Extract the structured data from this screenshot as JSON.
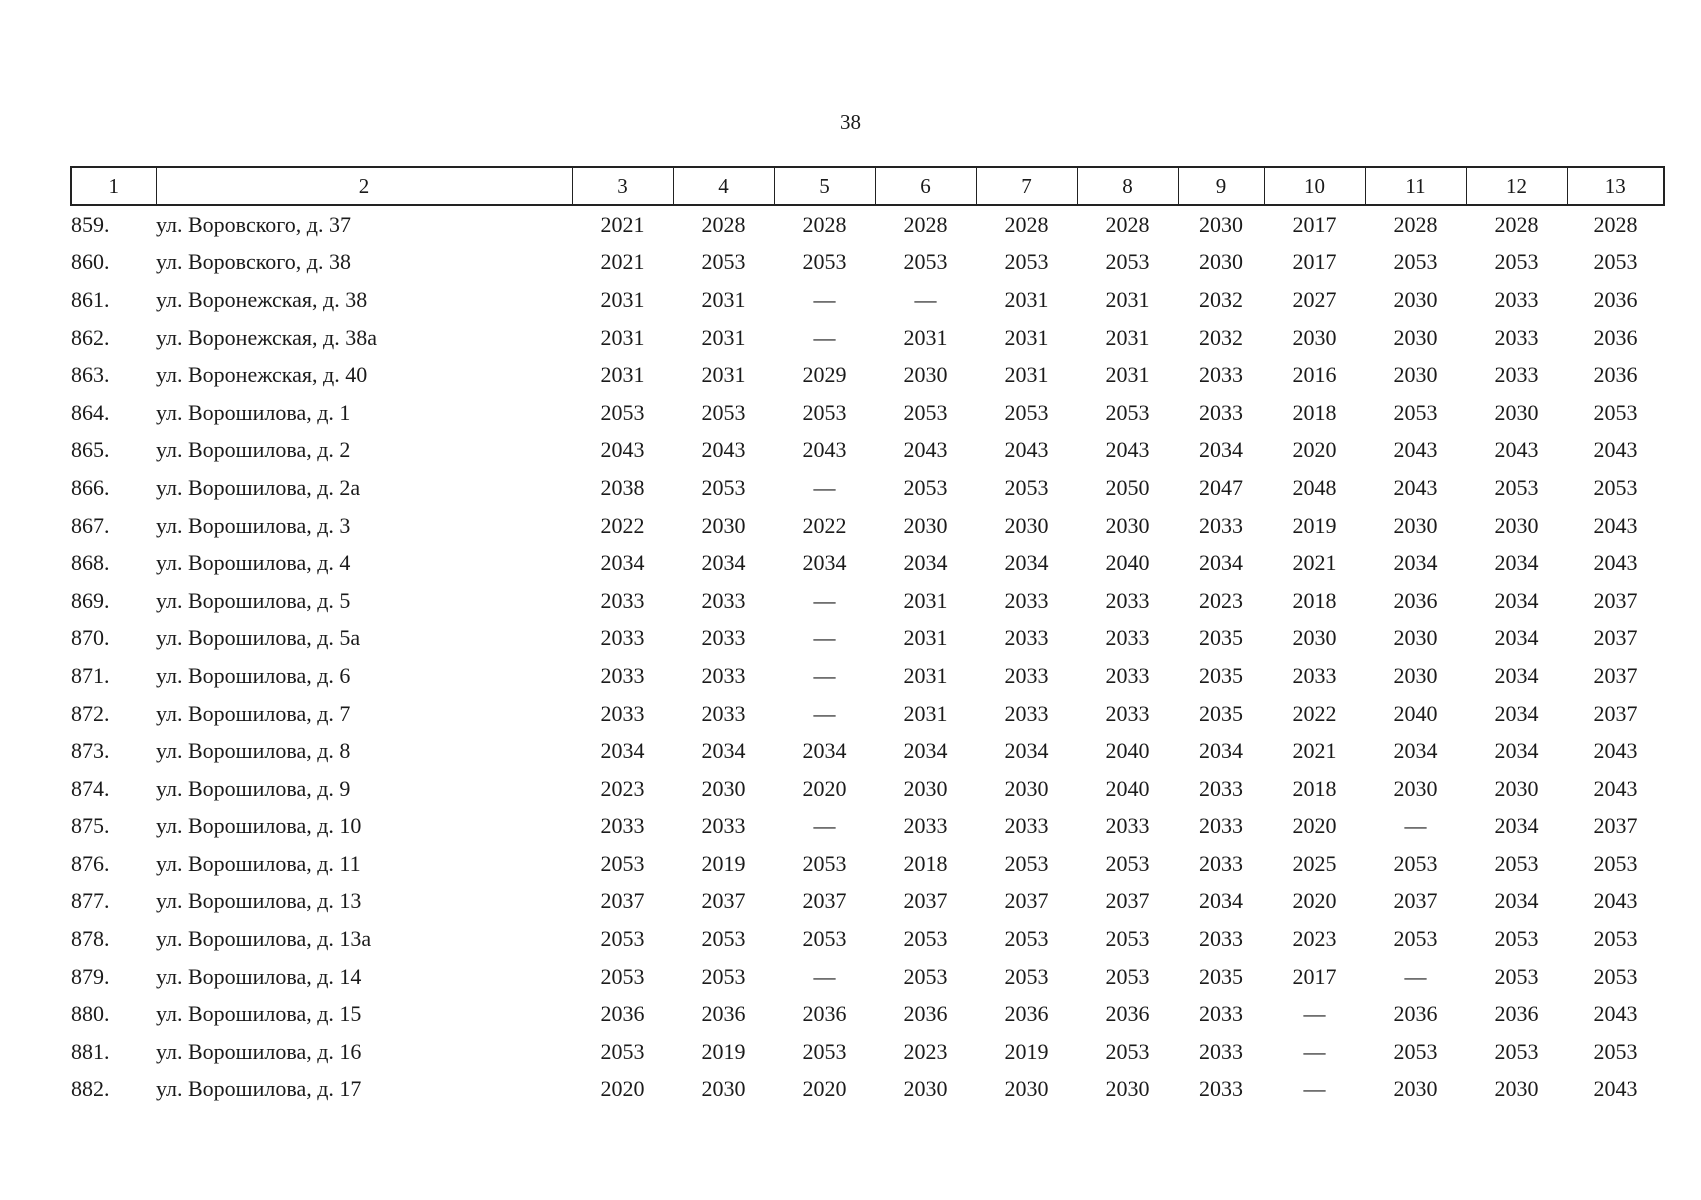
{
  "page_number": "38",
  "header": [
    "1",
    "2",
    "3",
    "4",
    "5",
    "6",
    "7",
    "8",
    "9",
    "10",
    "11",
    "12",
    "13"
  ],
  "rows": [
    {
      "n": "859.",
      "addr": "ул. Воровского, д. 37",
      "v": [
        "2021",
        "2028",
        "2028",
        "2028",
        "2028",
        "2028",
        "2030",
        "2017",
        "2028",
        "2028",
        "2028"
      ]
    },
    {
      "n": "860.",
      "addr": "ул. Воровского, д. 38",
      "v": [
        "2021",
        "2053",
        "2053",
        "2053",
        "2053",
        "2053",
        "2030",
        "2017",
        "2053",
        "2053",
        "2053"
      ]
    },
    {
      "n": "861.",
      "addr": "ул. Воронежская, д. 38",
      "v": [
        "2031",
        "2031",
        "—",
        "—",
        "2031",
        "2031",
        "2032",
        "2027",
        "2030",
        "2033",
        "2036"
      ]
    },
    {
      "n": "862.",
      "addr": "ул. Воронежская, д. 38а",
      "v": [
        "2031",
        "2031",
        "—",
        "2031",
        "2031",
        "2031",
        "2032",
        "2030",
        "2030",
        "2033",
        "2036"
      ]
    },
    {
      "n": "863.",
      "addr": "ул. Воронежская, д. 40",
      "v": [
        "2031",
        "2031",
        "2029",
        "2030",
        "2031",
        "2031",
        "2033",
        "2016",
        "2030",
        "2033",
        "2036"
      ]
    },
    {
      "n": "864.",
      "addr": "ул. Ворошилова, д. 1",
      "v": [
        "2053",
        "2053",
        "2053",
        "2053",
        "2053",
        "2053",
        "2033",
        "2018",
        "2053",
        "2030",
        "2053"
      ]
    },
    {
      "n": "865.",
      "addr": "ул. Ворошилова, д. 2",
      "v": [
        "2043",
        "2043",
        "2043",
        "2043",
        "2043",
        "2043",
        "2034",
        "2020",
        "2043",
        "2043",
        "2043"
      ]
    },
    {
      "n": "866.",
      "addr": "ул. Ворошилова, д. 2а",
      "v": [
        "2038",
        "2053",
        "—",
        "2053",
        "2053",
        "2050",
        "2047",
        "2048",
        "2043",
        "2053",
        "2053"
      ]
    },
    {
      "n": "867.",
      "addr": "ул. Ворошилова, д. 3",
      "v": [
        "2022",
        "2030",
        "2022",
        "2030",
        "2030",
        "2030",
        "2033",
        "2019",
        "2030",
        "2030",
        "2043"
      ]
    },
    {
      "n": "868.",
      "addr": "ул. Ворошилова, д. 4",
      "v": [
        "2034",
        "2034",
        "2034",
        "2034",
        "2034",
        "2040",
        "2034",
        "2021",
        "2034",
        "2034",
        "2043"
      ]
    },
    {
      "n": "869.",
      "addr": "ул. Ворошилова, д. 5",
      "v": [
        "2033",
        "2033",
        "—",
        "2031",
        "2033",
        "2033",
        "2023",
        "2018",
        "2036",
        "2034",
        "2037"
      ]
    },
    {
      "n": "870.",
      "addr": "ул. Ворошилова, д. 5а",
      "v": [
        "2033",
        "2033",
        "—",
        "2031",
        "2033",
        "2033",
        "2035",
        "2030",
        "2030",
        "2034",
        "2037"
      ]
    },
    {
      "n": "871.",
      "addr": "ул. Ворошилова, д. 6",
      "v": [
        "2033",
        "2033",
        "—",
        "2031",
        "2033",
        "2033",
        "2035",
        "2033",
        "2030",
        "2034",
        "2037"
      ]
    },
    {
      "n": "872.",
      "addr": "ул. Ворошилова, д. 7",
      "v": [
        "2033",
        "2033",
        "—",
        "2031",
        "2033",
        "2033",
        "2035",
        "2022",
        "2040",
        "2034",
        "2037"
      ]
    },
    {
      "n": "873.",
      "addr": "ул. Ворошилова, д. 8",
      "v": [
        "2034",
        "2034",
        "2034",
        "2034",
        "2034",
        "2040",
        "2034",
        "2021",
        "2034",
        "2034",
        "2043"
      ]
    },
    {
      "n": "874.",
      "addr": "ул. Ворошилова, д. 9",
      "v": [
        "2023",
        "2030",
        "2020",
        "2030",
        "2030",
        "2040",
        "2033",
        "2018",
        "2030",
        "2030",
        "2043"
      ]
    },
    {
      "n": "875.",
      "addr": "ул. Ворошилова, д. 10",
      "v": [
        "2033",
        "2033",
        "—",
        "2033",
        "2033",
        "2033",
        "2033",
        "2020",
        "—",
        "2034",
        "2037"
      ]
    },
    {
      "n": "876.",
      "addr": "ул. Ворошилова, д. 11",
      "v": [
        "2053",
        "2019",
        "2053",
        "2018",
        "2053",
        "2053",
        "2033",
        "2025",
        "2053",
        "2053",
        "2053"
      ]
    },
    {
      "n": "877.",
      "addr": "ул. Ворошилова, д. 13",
      "v": [
        "2037",
        "2037",
        "2037",
        "2037",
        "2037",
        "2037",
        "2034",
        "2020",
        "2037",
        "2034",
        "2043"
      ]
    },
    {
      "n": "878.",
      "addr": "ул. Ворошилова, д. 13а",
      "v": [
        "2053",
        "2053",
        "2053",
        "2053",
        "2053",
        "2053",
        "2033",
        "2023",
        "2053",
        "2053",
        "2053"
      ]
    },
    {
      "n": "879.",
      "addr": "ул. Ворошилова, д. 14",
      "v": [
        "2053",
        "2053",
        "—",
        "2053",
        "2053",
        "2053",
        "2035",
        "2017",
        "—",
        "2053",
        "2053"
      ]
    },
    {
      "n": "880.",
      "addr": "ул. Ворошилова, д. 15",
      "v": [
        "2036",
        "2036",
        "2036",
        "2036",
        "2036",
        "2036",
        "2033",
        "—",
        "2036",
        "2036",
        "2043"
      ]
    },
    {
      "n": "881.",
      "addr": "ул. Ворошилова, д. 16",
      "v": [
        "2053",
        "2019",
        "2053",
        "2023",
        "2019",
        "2053",
        "2033",
        "—",
        "2053",
        "2053",
        "2053"
      ]
    },
    {
      "n": "882.",
      "addr": "ул. Ворошилова, д. 17",
      "v": [
        "2020",
        "2030",
        "2020",
        "2030",
        "2030",
        "2030",
        "2033",
        "—",
        "2030",
        "2030",
        "2043"
      ]
    }
  ]
}
